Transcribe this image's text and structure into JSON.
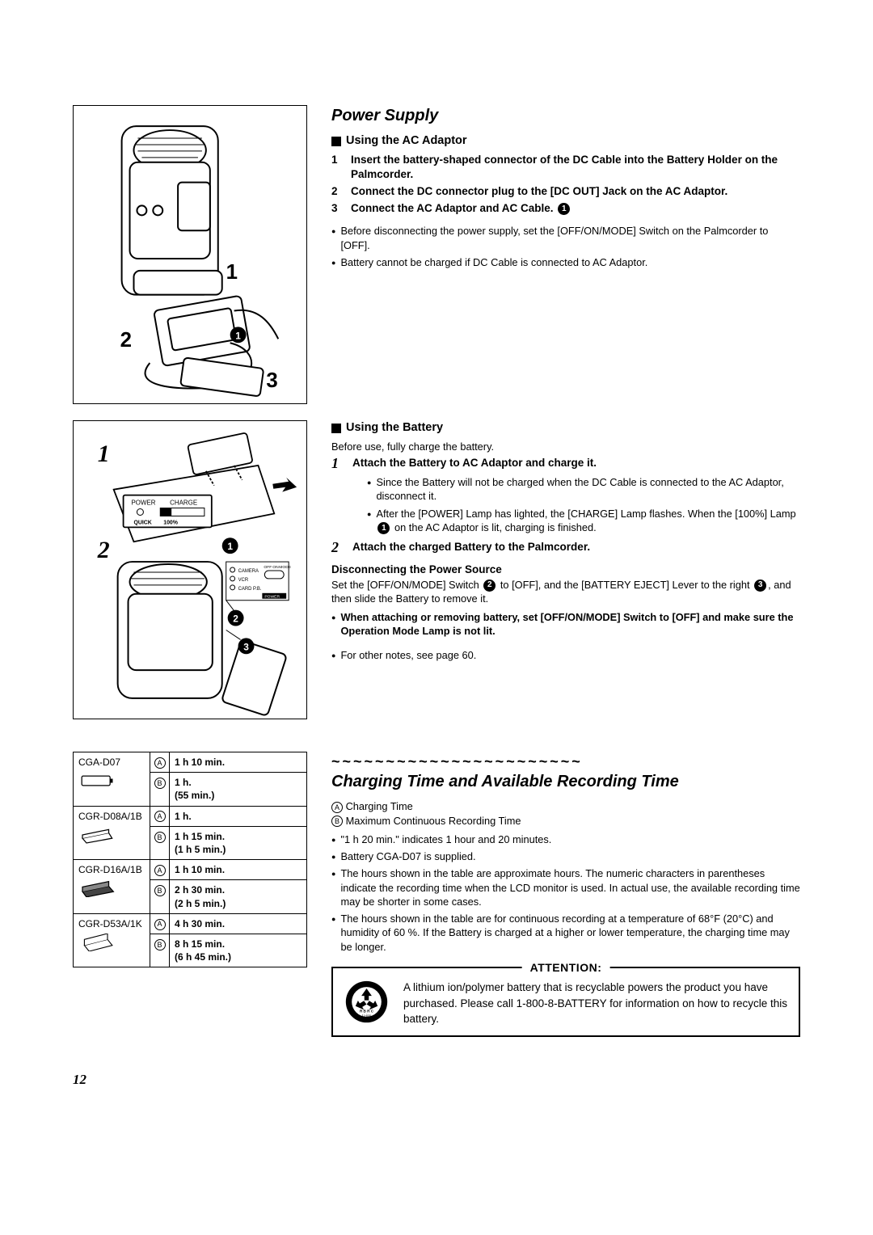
{
  "section1": {
    "title": "Power Supply",
    "sub1": "Using the AC Adaptor",
    "steps": [
      "Insert the battery-shaped connector of the DC Cable into the Battery Holder on the Palmcorder.",
      "Connect the DC connector plug to the [DC OUT] Jack on the AC Adaptor.",
      "Connect the AC Adaptor and AC Cable."
    ],
    "bullets1": [
      "Before disconnecting the power supply, set the [OFF/ON/MODE] Switch on the Palmcorder to [OFF].",
      "Battery cannot be charged if DC Cable is connected to AC Adaptor."
    ],
    "sub2": "Using the Battery",
    "beforeUse": "Before use, fully charge the battery.",
    "bsteps": [
      "Attach the Battery to AC Adaptor and charge it.",
      "Attach the charged Battery to the Palmcorder."
    ],
    "bsub": [
      "Since the Battery will not be charged when the DC Cable is connected to the AC Adaptor, disconnect it.",
      "After the [POWER] Lamp has lighted, the [CHARGE] Lamp flashes. When the [100%] Lamp "
    ],
    "bsub_tail": " on the AC Adaptor is lit, charging is finished.",
    "disc": "Disconnecting the Power Source",
    "disc_pre": "Set the [OFF/ON/MODE] Switch ",
    "disc_mid": " to [OFF], and the [BATTERY EJECT] Lever to the right ",
    "disc_post": ", and then slide the Battery to remove it.",
    "disc_bold": "When attaching or removing battery, set [OFF/ON/MODE] Switch to [OFF] and make sure the Operation Mode Lamp is not lit.",
    "other": "For other notes, see page 60."
  },
  "section2": {
    "title": "Charging Time and Available Recording Time",
    "legendA": "Charging Time",
    "legendB": "Maximum Continuous Recording Time",
    "bullets": [
      "\"1 h 20 min.\" indicates 1 hour and 20 minutes.",
      "Battery CGA-D07 is supplied.",
      "The hours shown in the table are approximate hours. The numeric characters in parentheses indicate the recording time when the LCD monitor is used. In actual use, the available recording time may be shorter in some cases.",
      "The hours shown in the table are for continuous recording at a temperature of 68°F (20°C) and humidity of 60 %. If the Battery is charged at a higher or lower temperature, the charging time may be longer."
    ],
    "table": [
      {
        "model": "CGA-D07",
        "a": "1 h 10 min.",
        "b": "1 h.",
        "bp": "(55 min.)"
      },
      {
        "model": "CGR-D08A/1B",
        "a": "1 h.",
        "b": "1 h 15 min.",
        "bp": "(1 h 5 min.)"
      },
      {
        "model": "CGR-D16A/1B",
        "a": "1 h 10 min.",
        "b": "2 h 30 min.",
        "bp": "(2 h 5 min.)"
      },
      {
        "model": "CGR-D53A/1K",
        "a": "4 h 30 min.",
        "b": "8 h 15 min.",
        "bp": "(6 h 45 min.)"
      }
    ]
  },
  "attention": {
    "label": "ATTENTION:",
    "text": "A lithium ion/polymer battery that is recyclable powers the product you have purchased. Please call 1-800-8-BATTERY for information on how to recycle this battery."
  },
  "pageNum": "12",
  "fig1": {
    "labels": [
      "1",
      "2",
      "3"
    ]
  },
  "fig2": {
    "bigNums": [
      "1",
      "2"
    ],
    "circNums": [
      "1",
      "2",
      "3"
    ],
    "panel": {
      "power": "POWER",
      "charge": "CHARGE",
      "quick": "QUICK",
      "pct": "100%"
    },
    "switch": {
      "camera": "CAMERA",
      "vcr": "VCR",
      "card": "CARD P.B.",
      "off": "OFF",
      "on": "ON",
      "mode": "MODE",
      "power": "POWER"
    }
  }
}
